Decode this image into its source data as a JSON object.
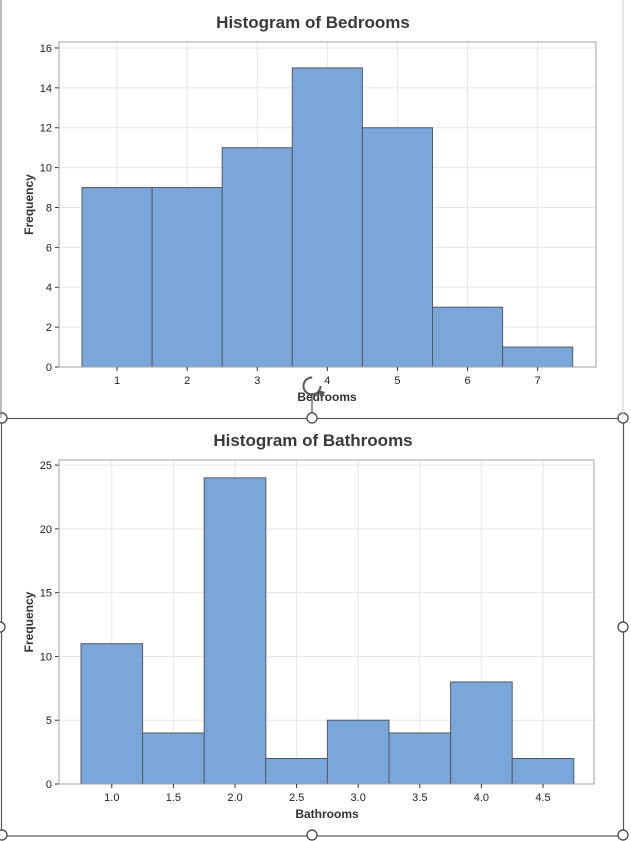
{
  "chart_data": [
    {
      "type": "bar",
      "title": "Histogram of Bedrooms",
      "xlabel": "Bedrooms",
      "ylabel": "Frequency",
      "categories": [
        "1",
        "2",
        "3",
        "4",
        "5",
        "6",
        "7"
      ],
      "values": [
        9,
        9,
        11,
        15,
        12,
        3,
        1
      ],
      "ylim": [
        0,
        16.3
      ],
      "yticks": [
        0,
        2,
        4,
        6,
        8,
        10,
        12,
        14,
        16
      ],
      "grid": true,
      "color": "#7aa6da"
    },
    {
      "type": "bar",
      "title": "Histogram of Bathrooms",
      "xlabel": "Bathrooms",
      "ylabel": "Frequency",
      "categories": [
        "1.0",
        "1.5",
        "2.0",
        "2.5",
        "3.0",
        "3.5",
        "4.0",
        "4.5"
      ],
      "values": [
        11,
        4,
        24,
        2,
        5,
        4,
        8,
        2
      ],
      "ylim": [
        0,
        25.4
      ],
      "yticks": [
        0,
        5,
        10,
        15,
        20,
        25
      ],
      "grid": true,
      "color": "#7aa6da"
    }
  ]
}
